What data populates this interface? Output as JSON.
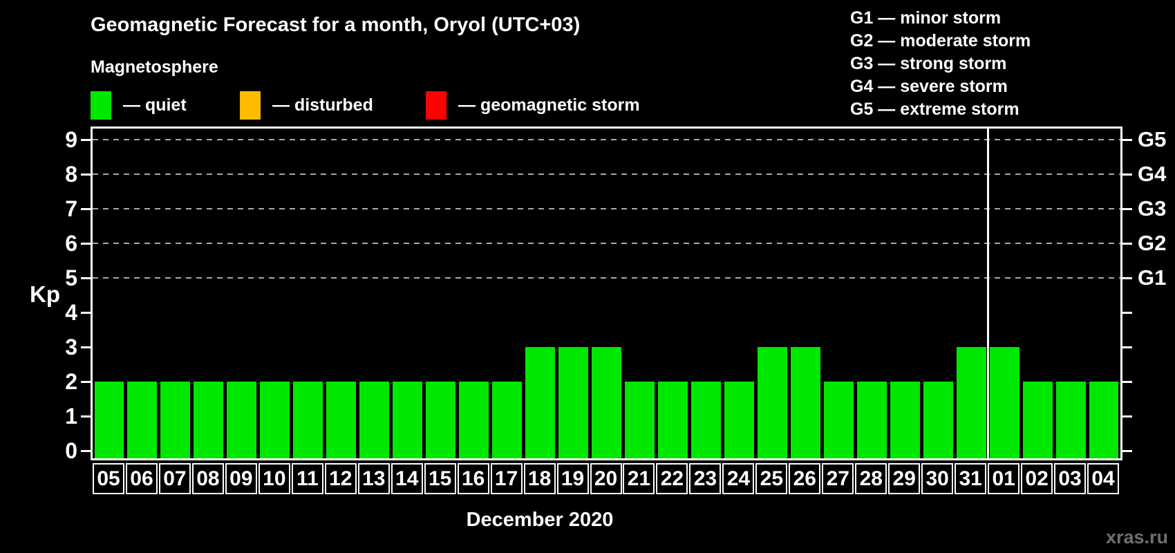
{
  "title": "Geomagnetic Forecast for a month, Oryol (UTC+03)",
  "magnetosphere_legend": {
    "heading": "Magnetosphere",
    "items": [
      {
        "name": "quiet",
        "label": "— quiet",
        "color": "#00e800"
      },
      {
        "name": "disturbed",
        "label": "— disturbed",
        "color": "#ffbb00"
      },
      {
        "name": "geomagnetic-storm",
        "label": "— geomagnetic storm",
        "color": "#ff0000"
      }
    ]
  },
  "storm_scale_legend": {
    "items": [
      "G1 — minor storm",
      "G2 — moderate storm",
      "G3 — strong storm",
      "G4 — severe storm",
      "G5 — extreme storm"
    ]
  },
  "watermark": "xras.ru",
  "chart_data": {
    "type": "bar",
    "title": "Geomagnetic Forecast for a month, Oryol (UTC+03)",
    "ylabel": "Kp",
    "xlabel": "December 2020",
    "categories": [
      "05",
      "06",
      "07",
      "08",
      "09",
      "10",
      "11",
      "12",
      "13",
      "14",
      "15",
      "16",
      "17",
      "18",
      "19",
      "20",
      "21",
      "22",
      "23",
      "24",
      "25",
      "26",
      "27",
      "28",
      "29",
      "30",
      "31",
      "01",
      "02",
      "03",
      "04"
    ],
    "values": [
      2,
      2,
      2,
      2,
      2,
      2,
      2,
      2,
      2,
      2,
      2,
      2,
      2,
      3,
      3,
      3,
      2,
      2,
      2,
      2,
      3,
      3,
      2,
      2,
      2,
      2,
      3,
      3,
      2,
      2,
      2
    ],
    "series_name": "Kp forecast",
    "bar_state_all_days": "quiet",
    "y_ticks": [
      0,
      1,
      2,
      3,
      4,
      5,
      6,
      7,
      8,
      9
    ],
    "ylim": [
      0,
      9
    ],
    "grid_levels": [
      5,
      6,
      7,
      8,
      9
    ],
    "grid_style": "dashed",
    "right_axis_labels": [
      {
        "label": "G1",
        "kp": 5
      },
      {
        "label": "G2",
        "kp": 6
      },
      {
        "label": "G3",
        "kp": 7
      },
      {
        "label": "G4",
        "kp": 8
      },
      {
        "label": "G5",
        "kp": 9
      }
    ],
    "month_separator_after_category": "31",
    "color_rule": {
      "quiet_max_kp": 3,
      "disturbed_kp": 4,
      "storm_min_kp": 5
    },
    "legend_position": "top-left"
  }
}
